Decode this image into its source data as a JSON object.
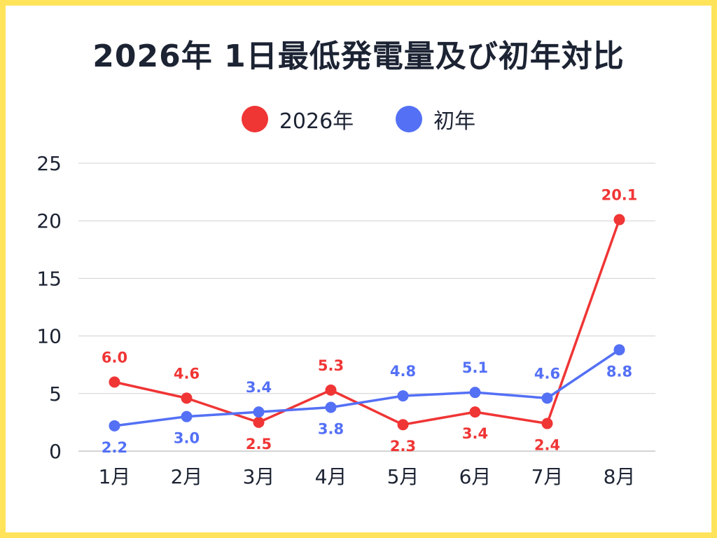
{
  "chart_data": {
    "type": "line",
    "title": "2026年 1日最低発電量及び初年対比",
    "categories": [
      "1月",
      "2月",
      "3月",
      "4月",
      "5月",
      "6月",
      "7月",
      "8月"
    ],
    "series": [
      {
        "name": "2026年",
        "color": "#f03535",
        "values": [
          6.0,
          4.6,
          2.5,
          5.3,
          2.3,
          3.4,
          2.4,
          20.1
        ],
        "labels": [
          "6.0",
          "4.6",
          "2.5",
          "5.3",
          "2.3",
          "3.4",
          "2.4",
          "20.1"
        ]
      },
      {
        "name": "初年",
        "color": "#5470f5",
        "values": [
          2.2,
          3.0,
          3.4,
          3.8,
          4.8,
          5.1,
          4.6,
          8.8
        ],
        "labels": [
          "2.2",
          "3.0",
          "3.4",
          "3.8",
          "4.8",
          "5.1",
          "4.6",
          "8.8"
        ]
      }
    ],
    "ylim": [
      0,
      25
    ],
    "yticks": [
      "0",
      "5",
      "10",
      "15",
      "20",
      "25"
    ],
    "xlabel": "",
    "ylabel": "",
    "grid": true,
    "legend_position": "top-center"
  },
  "theme": {
    "frame_color": "#ffe35a",
    "text_color": "#1c2333",
    "grid_color": "#d0d0d0"
  }
}
